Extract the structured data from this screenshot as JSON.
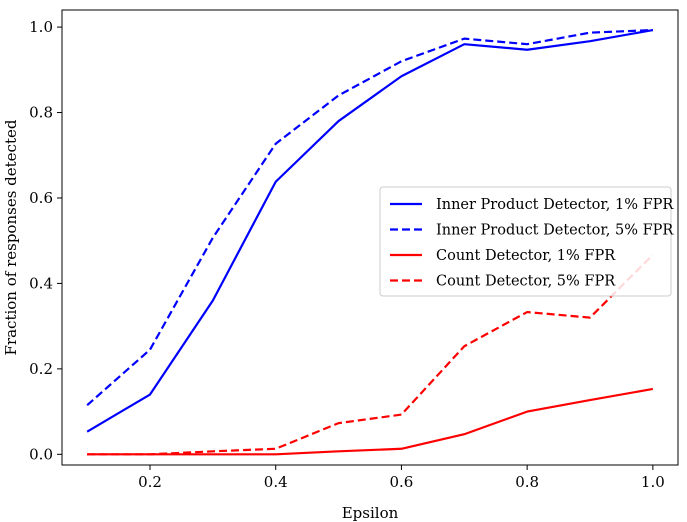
{
  "chart_data": {
    "type": "line",
    "title": "",
    "xlabel": "Epsilon",
    "ylabel": "Fraction of responses detected",
    "xlim": [
      0.06,
      1.04
    ],
    "ylim": [
      -0.025,
      1.04
    ],
    "xticks": [
      0.2,
      0.4,
      0.6,
      0.8,
      1.0
    ],
    "xtick_labels": [
      "0.2",
      "0.4",
      "0.6",
      "0.8",
      "1.0"
    ],
    "yticks": [
      0.0,
      0.2,
      0.4,
      0.6,
      0.8,
      1.0
    ],
    "ytick_labels": [
      "0.0",
      "0.2",
      "0.4",
      "0.6",
      "0.8",
      "1.0"
    ],
    "grid": false,
    "legend_position": "center-right",
    "x": [
      0.1,
      0.2,
      0.3,
      0.4,
      0.5,
      0.6,
      0.7,
      0.8,
      0.9,
      1.0
    ],
    "series": [
      {
        "name": "Inner Product Detector, 1% FPR",
        "color": "#0000ff",
        "style": "solid",
        "values": [
          0.053,
          0.14,
          0.36,
          0.638,
          0.78,
          0.885,
          0.96,
          0.947,
          0.967,
          0.993
        ]
      },
      {
        "name": "Inner Product Detector, 5% FPR",
        "color": "#0000ff",
        "style": "dashed",
        "values": [
          0.115,
          0.245,
          0.507,
          0.727,
          0.84,
          0.92,
          0.973,
          0.96,
          0.987,
          0.993
        ]
      },
      {
        "name": "Count Detector, 1% FPR",
        "color": "#ff0000",
        "style": "solid",
        "values": [
          0.0,
          0.0,
          0.0,
          0.0,
          0.007,
          0.013,
          0.047,
          0.1,
          0.127,
          0.153
        ]
      },
      {
        "name": "Count Detector, 5% FPR",
        "color": "#ff0000",
        "style": "dashed",
        "values": [
          0.0,
          0.0,
          0.007,
          0.013,
          0.073,
          0.093,
          0.253,
          0.333,
          0.32,
          0.467
        ]
      }
    ]
  }
}
